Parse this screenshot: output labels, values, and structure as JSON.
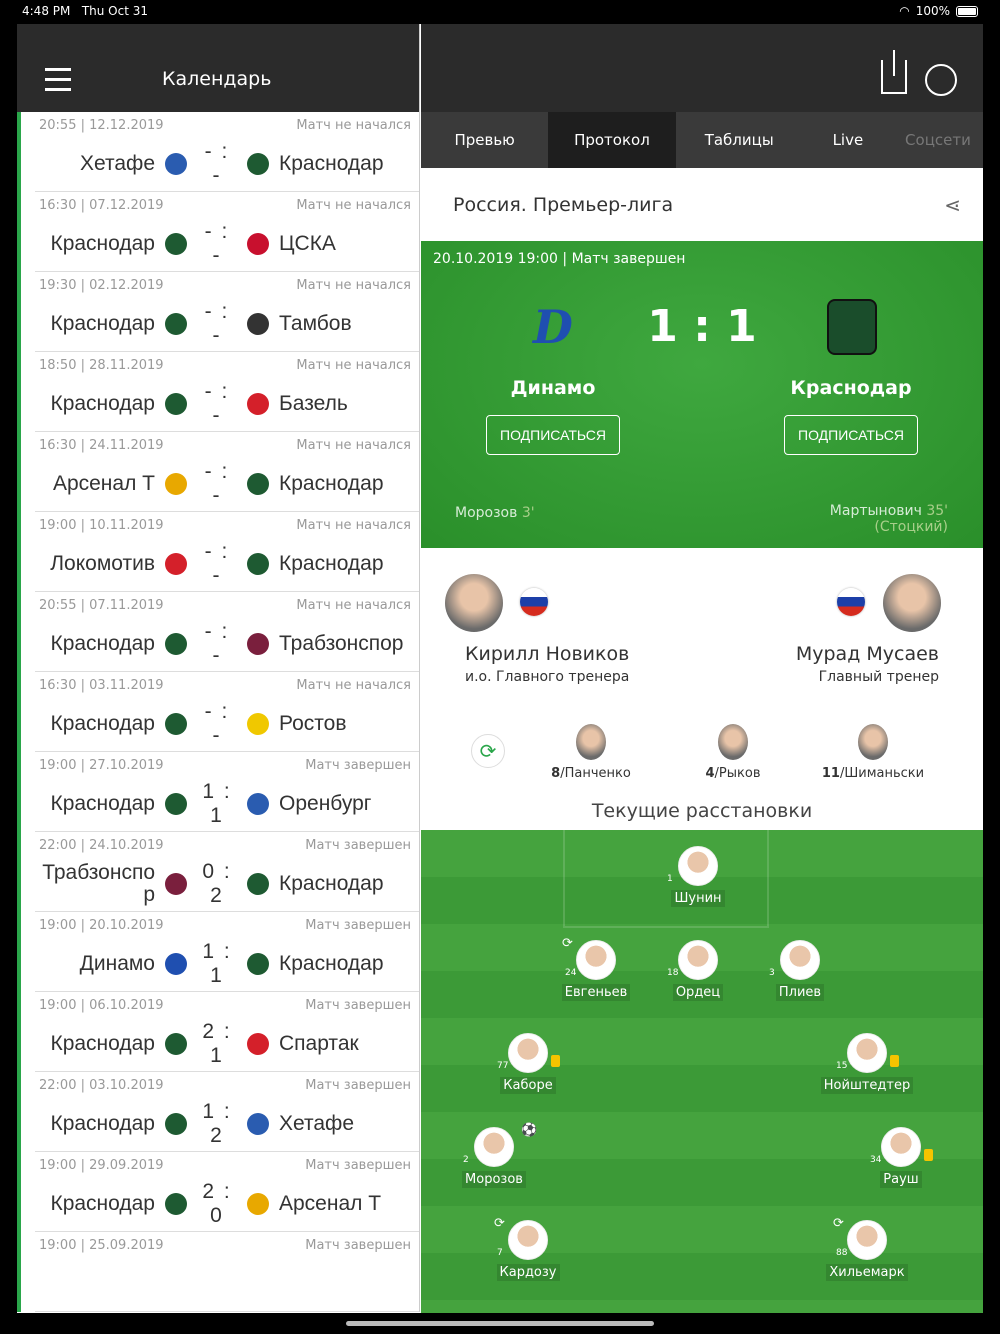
{
  "status_bar": {
    "time": "4:48 PM",
    "date": "Thu Oct 31",
    "battery": "100%"
  },
  "left": {
    "title": "Календарь",
    "matches": [
      {
        "time": "20:55 | 12.12.2019",
        "status": "Матч не начался",
        "home": "Хетафе",
        "score": "- : -",
        "away": "Краснодар",
        "hc": "#2a5cb0",
        "ac": "#1e5a32"
      },
      {
        "time": "16:30 | 07.12.2019",
        "status": "Матч не начался",
        "home": "Краснодар",
        "score": "- : -",
        "away": "ЦСКА",
        "hc": "#1e5a32",
        "ac": "#c8102e"
      },
      {
        "time": "19:30 | 02.12.2019",
        "status": "Матч не начался",
        "home": "Краснодар",
        "score": "- : -",
        "away": "Тамбов",
        "hc": "#1e5a32",
        "ac": "#333"
      },
      {
        "time": "18:50 | 28.11.2019",
        "status": "Матч не начался",
        "home": "Краснодар",
        "score": "- : -",
        "away": "Базель",
        "hc": "#1e5a32",
        "ac": "#d4202a"
      },
      {
        "time": "16:30 | 24.11.2019",
        "status": "Матч не начался",
        "home": "Арсенал Т",
        "score": "- : -",
        "away": "Краснодар",
        "hc": "#e8a800",
        "ac": "#1e5a32"
      },
      {
        "time": "19:00 | 10.11.2019",
        "status": "Матч не начался",
        "home": "Локомотив",
        "score": "- : -",
        "away": "Краснодар",
        "hc": "#d4202a",
        "ac": "#1e5a32"
      },
      {
        "time": "20:55 | 07.11.2019",
        "status": "Матч не начался",
        "home": "Краснодар",
        "score": "- : -",
        "away": "Трабзонспор",
        "hc": "#1e5a32",
        "ac": "#7a1f3d"
      },
      {
        "time": "16:30 | 03.11.2019",
        "status": "Матч не начался",
        "home": "Краснодар",
        "score": "- : -",
        "away": "Ростов",
        "hc": "#1e5a32",
        "ac": "#f0c800"
      },
      {
        "time": "19:00 | 27.10.2019",
        "status": "Матч завершен",
        "home": "Краснодар",
        "score": "1 : 1",
        "away": "Оренбург",
        "hc": "#1e5a32",
        "ac": "#2a5cb0"
      },
      {
        "time": "22:00 | 24.10.2019",
        "status": "Матч завершен",
        "home": "Трабзонспор",
        "score": "0 : 2",
        "away": "Краснодар",
        "hc": "#7a1f3d",
        "ac": "#1e5a32"
      },
      {
        "time": "19:00 | 20.10.2019",
        "status": "Матч завершен",
        "home": "Динамо",
        "score": "1 : 1",
        "away": "Краснодар",
        "hc": "#1f4fb0",
        "ac": "#1e5a32"
      },
      {
        "time": "19:00 | 06.10.2019",
        "status": "Матч завершен",
        "home": "Краснодар",
        "score": "2 : 1",
        "away": "Спартак",
        "hc": "#1e5a32",
        "ac": "#d4202a"
      },
      {
        "time": "22:00 | 03.10.2019",
        "status": "Матч завершен",
        "home": "Краснодар",
        "score": "1 : 2",
        "away": "Хетафе",
        "hc": "#1e5a32",
        "ac": "#2a5cb0"
      },
      {
        "time": "19:00 | 29.09.2019",
        "status": "Матч завершен",
        "home": "Краснодар",
        "score": "2 : 0",
        "away": "Арсенал Т",
        "hc": "#1e5a32",
        "ac": "#e8a800"
      },
      {
        "time": "19:00 | 25.09.2019",
        "status": "Матч завершен",
        "home": "",
        "score": "",
        "away": "",
        "hc": "#fff",
        "ac": "#fff"
      }
    ]
  },
  "tabs": [
    {
      "label": "Превью"
    },
    {
      "label": "Протокол",
      "active": true
    },
    {
      "label": "Таблицы"
    },
    {
      "label": "Live"
    },
    {
      "label": "Соцсети",
      "disabled": true
    }
  ],
  "league": "Россия. Премьер-лига",
  "match": {
    "datetime": "20.10.2019 19:00 | Матч завершен",
    "home": "Динамо",
    "away": "Краснодар",
    "score": "1 : 1",
    "subscribe": "ПОДПИСАТЬСЯ",
    "home_goal": {
      "player": "Морозов",
      "minute": "3'"
    },
    "away_goal": {
      "player": "Мартынович",
      "minute": "35'",
      "assist": "(Стоцкий)"
    }
  },
  "coaches": {
    "home": {
      "name": "Кирилл Новиков",
      "role": "и.о. Главного тренера"
    },
    "away": {
      "name": "Мурад Мусаев",
      "role": "Главный тренер"
    }
  },
  "subs": [
    {
      "num": "8",
      "name": "/Панченко"
    },
    {
      "num": "4",
      "name": "/Рыков"
    },
    {
      "num": "11",
      "name": "/Шиманьски"
    }
  ],
  "lineup_title": "Текущие расстановки",
  "lineup": [
    {
      "num": "1",
      "name": "Шунин"
    },
    {
      "num": "24",
      "name": "Евгеньев",
      "sub": true
    },
    {
      "num": "18",
      "name": "Ордец"
    },
    {
      "num": "3",
      "name": "Плиев"
    },
    {
      "num": "77",
      "name": "Каборе",
      "yellow": true
    },
    {
      "num": "15",
      "name": "Нойштедтер",
      "yellow": true
    },
    {
      "num": "2",
      "name": "Морозов",
      "goal": true
    },
    {
      "num": "34",
      "name": "Рауш",
      "yellow": true
    },
    {
      "num": "7",
      "name": "Кардозу",
      "sub": true
    },
    {
      "num": "88",
      "name": "Хильемарк",
      "sub": true
    }
  ],
  "colors": {
    "accent": "#2aa64a",
    "header": "#2b2b2b",
    "tabs": "#3a3a3a",
    "tab_active": "#1e1e1e",
    "pitch": "#45a33e",
    "yellow_card": "#f5c400"
  }
}
